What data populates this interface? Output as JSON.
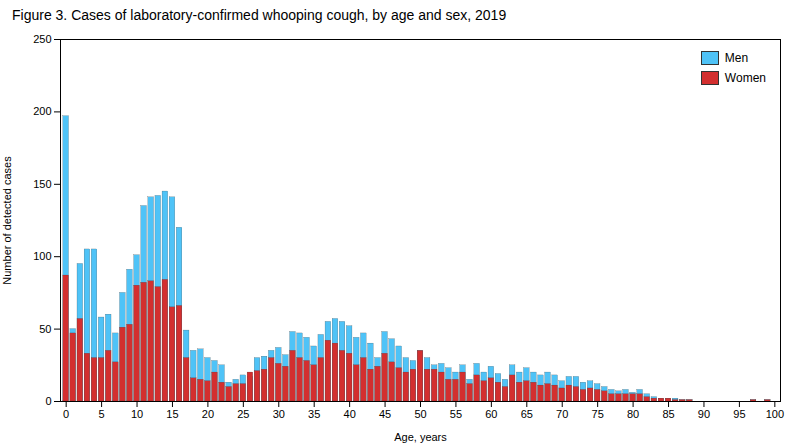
{
  "chart_data": {
    "type": "bar",
    "title": "Figure 3. Cases of laboratory-confirmed whooping cough, by age and sex, 2019",
    "xlabel": "Age, years",
    "ylabel": "Number of detected cases",
    "x": [
      0,
      1,
      2,
      3,
      4,
      5,
      6,
      7,
      8,
      9,
      10,
      11,
      12,
      13,
      14,
      15,
      16,
      17,
      18,
      19,
      20,
      21,
      22,
      23,
      24,
      25,
      26,
      27,
      28,
      29,
      30,
      31,
      32,
      33,
      34,
      35,
      36,
      37,
      38,
      39,
      40,
      41,
      42,
      43,
      44,
      45,
      46,
      47,
      48,
      49,
      50,
      51,
      52,
      53,
      54,
      55,
      56,
      57,
      58,
      59,
      60,
      61,
      62,
      63,
      64,
      65,
      66,
      67,
      68,
      69,
      70,
      71,
      72,
      73,
      74,
      75,
      76,
      77,
      78,
      79,
      80,
      81,
      82,
      83,
      84,
      85,
      86,
      87,
      88,
      89,
      90,
      91,
      92,
      93,
      94,
      95,
      96,
      97,
      98,
      99
    ],
    "series": [
      {
        "name": "Men",
        "color": "#4FC3F7",
        "values": [
          197,
          50,
          95,
          105,
          105,
          58,
          60,
          47,
          75,
          91,
          101,
          135,
          141,
          142,
          145,
          141,
          120,
          49,
          35,
          36,
          30,
          28,
          25,
          13,
          15,
          18,
          17,
          30,
          31,
          35,
          37,
          32,
          48,
          47,
          44,
          38,
          46,
          55,
          57,
          55,
          52,
          44,
          47,
          40,
          30,
          48,
          43,
          38,
          30,
          28,
          35,
          30,
          25,
          26,
          23,
          20,
          25,
          15,
          26,
          20,
          24,
          19,
          15,
          25,
          20,
          23,
          20,
          18,
          20,
          18,
          14,
          17,
          17,
          13,
          14,
          12,
          10,
          8,
          7,
          8,
          6,
          8,
          5,
          3,
          2,
          2,
          2,
          1,
          1,
          0,
          0,
          0,
          0,
          0,
          0,
          0,
          0,
          1,
          0,
          1
        ]
      },
      {
        "name": "Women",
        "color": "#D32F2F",
        "values": [
          87,
          47,
          57,
          33,
          30,
          30,
          35,
          27,
          51,
          53,
          80,
          82,
          83,
          79,
          84,
          65,
          66,
          30,
          16,
          15,
          14,
          20,
          13,
          10,
          12,
          12,
          20,
          21,
          22,
          30,
          26,
          24,
          35,
          30,
          28,
          25,
          30,
          42,
          40,
          35,
          33,
          25,
          30,
          22,
          24,
          33,
          27,
          23,
          20,
          22,
          35,
          22,
          22,
          20,
          15,
          15,
          20,
          12,
          18,
          14,
          16,
          13,
          10,
          18,
          13,
          14,
          13,
          11,
          12,
          11,
          9,
          11,
          10,
          8,
          9,
          8,
          7,
          5,
          5,
          5,
          5,
          5,
          3,
          2,
          2,
          2,
          1,
          1,
          1,
          0,
          0,
          0,
          0,
          0,
          0,
          0,
          0,
          1,
          0,
          1
        ]
      }
    ],
    "xlim": [
      -0.8,
      100.8
    ],
    "xticks": [
      0,
      5,
      10,
      15,
      20,
      25,
      30,
      35,
      40,
      45,
      50,
      55,
      60,
      65,
      70,
      75,
      80,
      85,
      90,
      95,
      100
    ],
    "ylim": [
      0,
      250
    ],
    "yticks": [
      0,
      50,
      100,
      150,
      200,
      250
    ],
    "legend": "upper right",
    "grid": false
  }
}
